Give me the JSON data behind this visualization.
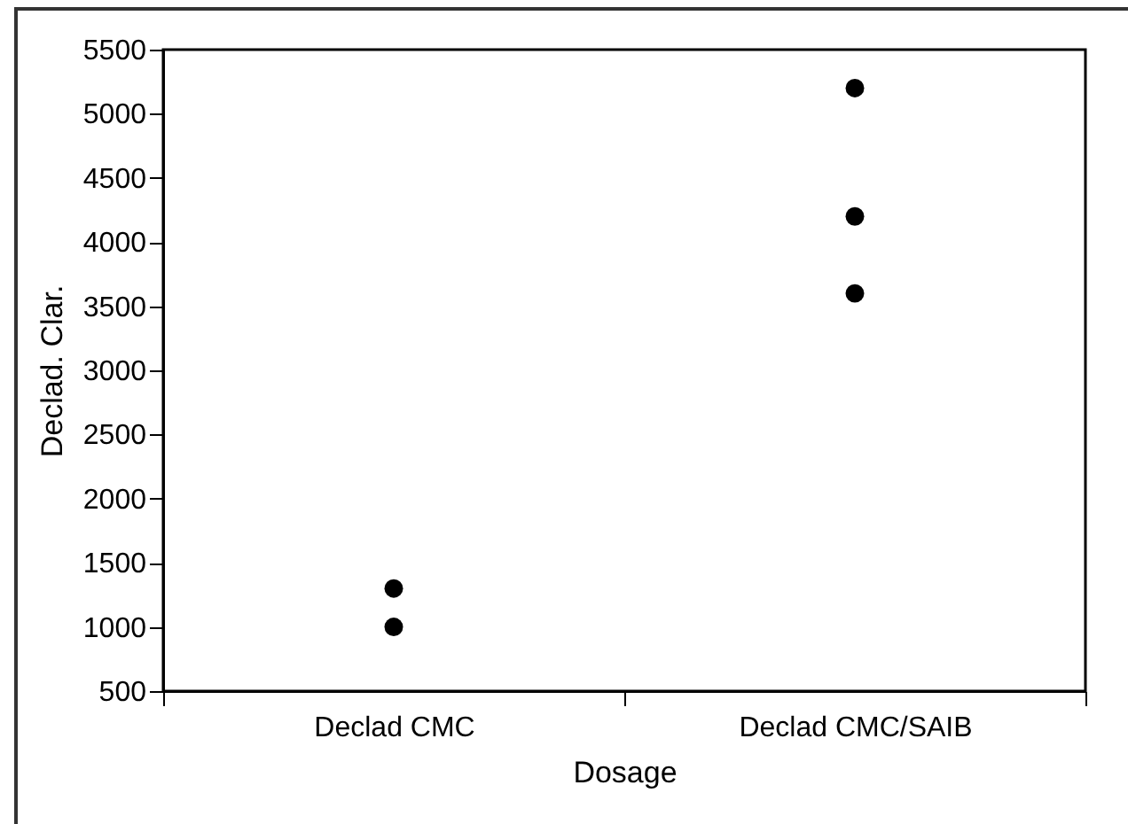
{
  "chart_data": {
    "type": "scatter",
    "xlabel": "Dosage",
    "ylabel": "Declad. Clar.",
    "categories": [
      "Declad CMC",
      "Declad CMC/SAIB"
    ],
    "series": [
      {
        "color": "#000000",
        "x": [
          "Declad CMC",
          "Declad CMC",
          "Declad CMC/SAIB",
          "Declad CMC/SAIB",
          "Declad CMC/SAIB"
        ],
        "values": [
          1300,
          1000,
          5200,
          4200,
          3600
        ]
      }
    ],
    "ylim": [
      500,
      5500
    ],
    "yticks": [
      500,
      1000,
      1500,
      2000,
      2500,
      3000,
      3500,
      4000,
      4500,
      5000,
      5500
    ],
    "grid": false,
    "marker": "circle"
  }
}
